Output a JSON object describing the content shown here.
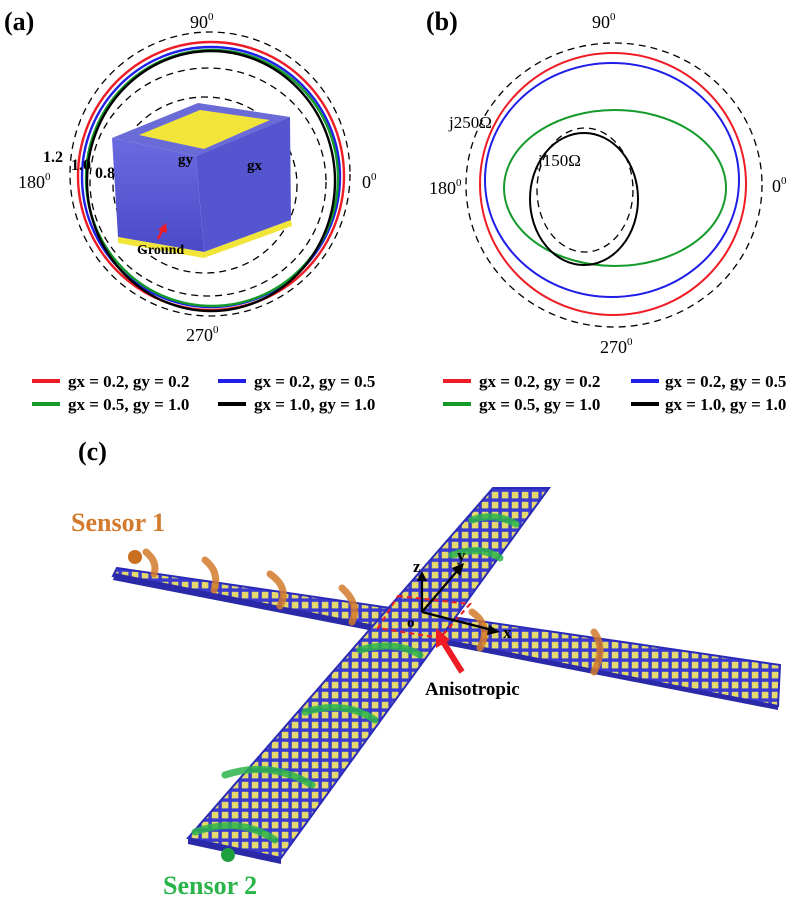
{
  "panel_a": {
    "label": "(a)",
    "angles": {
      "top": "90",
      "left": "180",
      "right": "0",
      "bottom": "270",
      "sup": "0"
    },
    "ring_labels": [
      "1.2",
      "1.0",
      "0.8"
    ],
    "inset": {
      "gy": "gy",
      "gx": "gx",
      "ground": "Ground"
    }
  },
  "panel_b": {
    "label": "(b)",
    "angles": {
      "top": "90",
      "left": "180",
      "right": "0",
      "bottom": "270",
      "sup": "0"
    },
    "annotations": [
      "j250Ω",
      "j150Ω"
    ]
  },
  "legend": {
    "entries": [
      {
        "label": "gx = 0.2, gy = 0.2",
        "color": "#ee1c25"
      },
      {
        "label": "gx = 0.2, gy = 0.5",
        "color": "#1f1fe8"
      },
      {
        "label": "gx = 0.5, gy = 1.0",
        "color": "#139a2a"
      },
      {
        "label": "gx = 1.0, gy = 1.0",
        "color": "#000000"
      }
    ]
  },
  "panel_c": {
    "label": "(c)",
    "sensor1": "Sensor 1",
    "sensor2": "Sensor 2",
    "anisotropic": "Anisotropic",
    "axes": {
      "x": "x",
      "y": "y",
      "z": "z",
      "origin": "o"
    },
    "colors": {
      "sensor1": "#d37a2c",
      "sensor2": "#2bb44a",
      "grid": "#3a3ad0",
      "cell": "#e4d96a",
      "arrow": "#ee1c25"
    }
  }
}
